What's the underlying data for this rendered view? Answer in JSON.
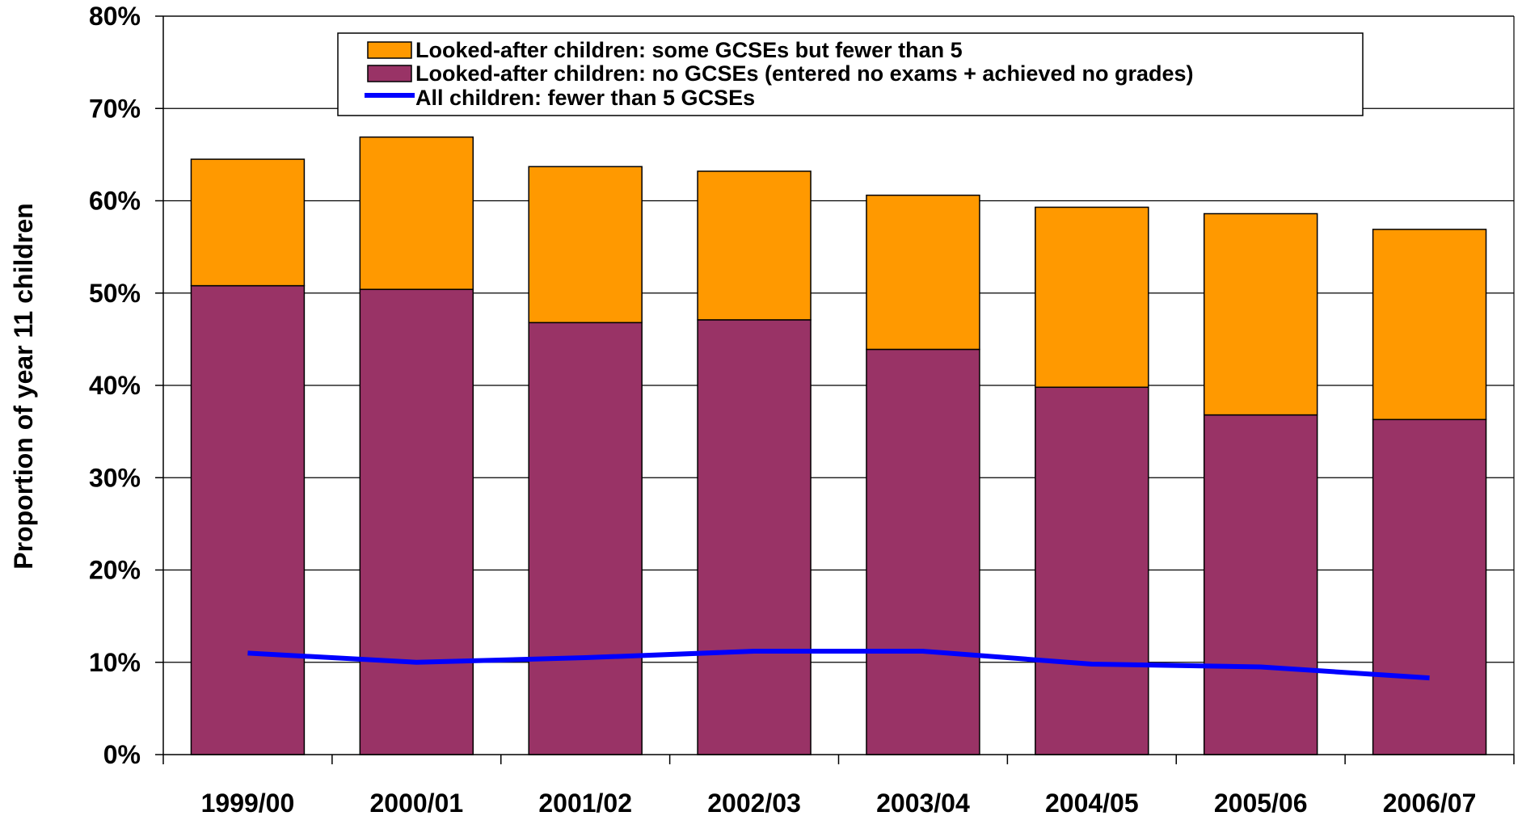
{
  "chart_data": {
    "type": "bar",
    "stacked": true,
    "categories": [
      "1999/00",
      "2000/01",
      "2001/02",
      "2002/03",
      "2003/04",
      "2004/05",
      "2005/06",
      "2006/07"
    ],
    "series": [
      {
        "name": "Looked-after children: no GCSEs (entered no exams + achieved no grades)",
        "type": "bar",
        "color": "#993366",
        "values": [
          50.8,
          50.4,
          46.8,
          47.1,
          43.9,
          39.8,
          36.8,
          36.3
        ]
      },
      {
        "name": "Looked-after children: some GCSEs but fewer than 5",
        "type": "bar",
        "color": "#FF9900",
        "values": [
          13.7,
          16.5,
          16.9,
          16.1,
          16.7,
          19.5,
          21.8,
          20.6
        ]
      },
      {
        "name": "All children: fewer than 5 GCSEs",
        "type": "line",
        "color": "#0000FF",
        "values": [
          11.0,
          10.0,
          10.5,
          11.2,
          11.2,
          9.8,
          9.5,
          8.3
        ]
      }
    ],
    "title": "",
    "xlabel": "",
    "ylabel": "Proportion of year 11 children",
    "ylim": [
      0,
      80
    ],
    "yticks": [
      0,
      10,
      20,
      30,
      40,
      50,
      60,
      70,
      80
    ],
    "ytick_labels": [
      "0%",
      "10%",
      "20%",
      "30%",
      "40%",
      "50%",
      "60%",
      "70%",
      "80%"
    ],
    "grid": true,
    "legend": {
      "position": "top-center",
      "entries": [
        {
          "label": "Looked-after children: some GCSEs but fewer than 5",
          "symbol": "box",
          "color": "#FF9900"
        },
        {
          "label": "Looked-after children: no GCSEs (entered no exams + achieved no grades)",
          "symbol": "box",
          "color": "#993366"
        },
        {
          "label": "All children: fewer than 5 GCSEs",
          "symbol": "line",
          "color": "#0000FF"
        }
      ]
    }
  }
}
